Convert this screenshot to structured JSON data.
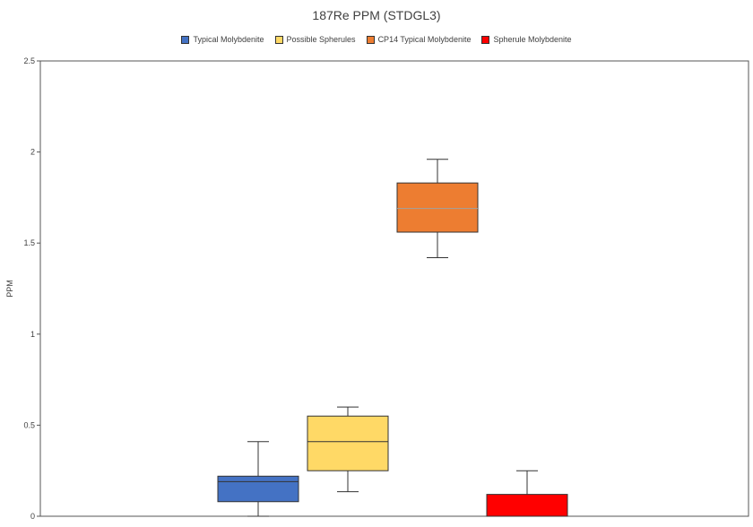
{
  "chart_data": {
    "type": "box",
    "title": "187Re PPM (STDGL3)",
    "xlabel": "",
    "ylabel": "PPM",
    "ylim": [
      0,
      2.5
    ],
    "yticks": [
      "0",
      "0.5",
      "1",
      "1.5",
      "2",
      "2.5"
    ],
    "grid": false,
    "legend_position": "top",
    "series": [
      {
        "name": "Typical Molybdenite",
        "color": "#4472c4",
        "min": 0.0,
        "q1": 0.08,
        "median": 0.19,
        "q3": 0.22,
        "max": 0.41
      },
      {
        "name": "Possible Spherules",
        "color": "#ffd966",
        "min": 0.135,
        "q1": 0.25,
        "median": 0.41,
        "q3": 0.55,
        "max": 0.6
      },
      {
        "name": "CP14 Typical Molybdenite",
        "color": "#ed7d31",
        "min": 1.42,
        "q1": 1.56,
        "median": 1.69,
        "q3": 1.83,
        "max": 1.96
      },
      {
        "name": "Spherule Molybdenite",
        "color": "#ff0000",
        "min": 0.0,
        "q1": 0.0,
        "median": 0.0,
        "q3": 0.12,
        "max": 0.25
      }
    ]
  }
}
